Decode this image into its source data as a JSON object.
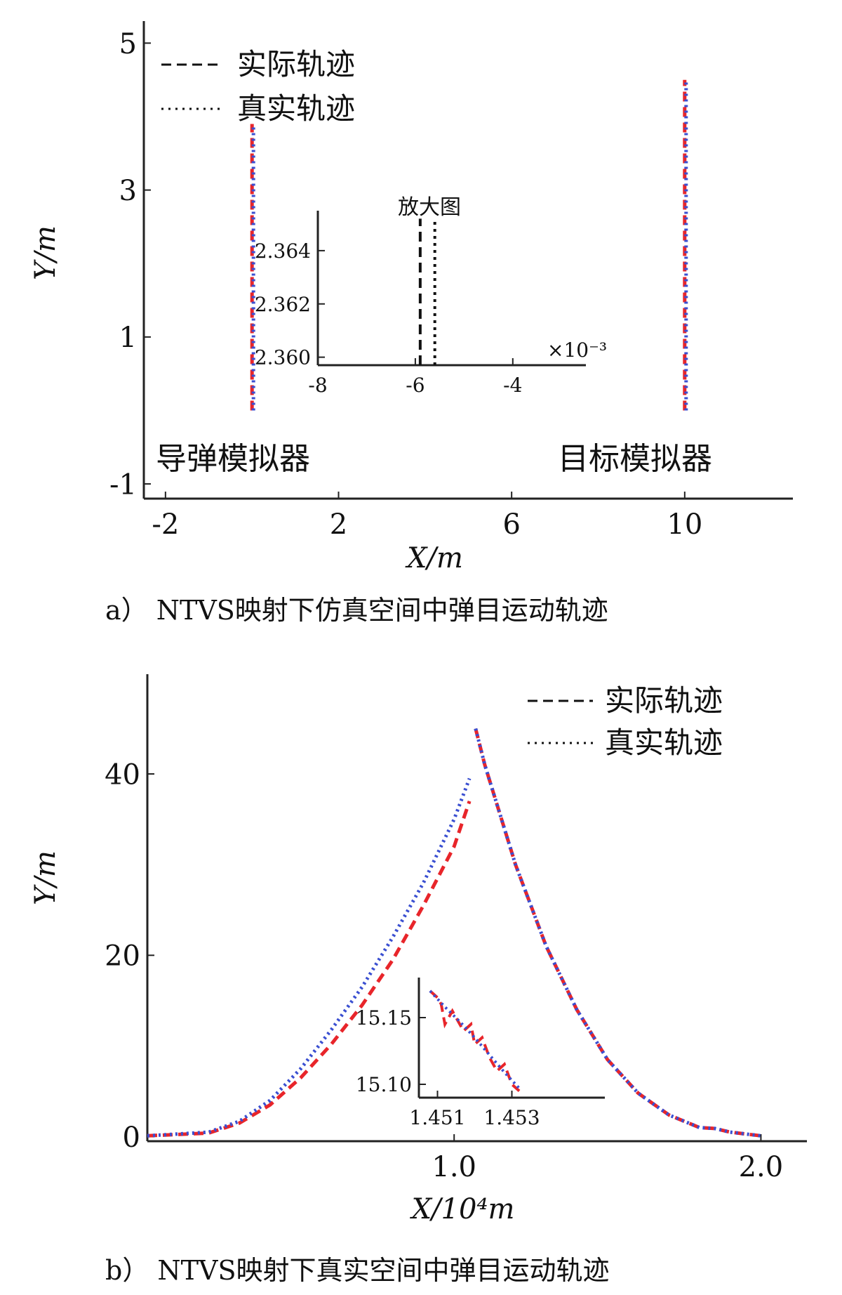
{
  "colors": {
    "actual": "#e8252a",
    "true": "#3a4fd1",
    "axis": "#222222"
  },
  "chart_data": [
    {
      "id": "a",
      "type": "line",
      "caption": "a） NTVS映射下仿真空间中弹目运动轨迹",
      "xlabel": "X/m",
      "ylabel": "Y/m",
      "xlim": [
        -2.5,
        12.5
      ],
      "ylim": [
        -1.2,
        5.3
      ],
      "xticks": [
        -2,
        2,
        6,
        10
      ],
      "yticks": [
        -1,
        1,
        3,
        5
      ],
      "legend": [
        "实际轨迹",
        "真实轨迹"
      ],
      "legend_position": "top-left",
      "series": [
        {
          "name": "实际轨迹",
          "style": "dashed",
          "segments": [
            [
              [
                0,
                0
              ],
              [
                0,
                3.9
              ]
            ],
            [
              [
                10,
                0
              ],
              [
                10,
                4.5
              ]
            ]
          ]
        },
        {
          "name": "真实轨迹",
          "style": "dotted",
          "segments": [
            [
              [
                0,
                0
              ],
              [
                0,
                3.9
              ]
            ],
            [
              [
                10,
                0
              ],
              [
                10,
                4.5
              ]
            ]
          ]
        }
      ],
      "annotations": [
        "导弹模拟器",
        "目标模拟器"
      ],
      "inset": {
        "title": "放大图",
        "xticks": [
          -8,
          -6,
          -4
        ],
        "xtick_labels": [
          "-8",
          "-6",
          "-4"
        ],
        "xlim": [
          -8,
          -2.5
        ],
        "yticks": [
          2.36,
          2.362,
          2.364
        ],
        "ytick_labels": [
          "2.360",
          "2.362",
          "2.364"
        ],
        "ylim": [
          2.3597,
          2.3655
        ],
        "x_multiplier": "×10⁻³",
        "series": [
          {
            "name": "实际轨迹",
            "style": "dashed",
            "x": -5.9,
            "y": [
              2.3597,
              2.3652
            ]
          },
          {
            "name": "真实轨迹",
            "style": "dotted",
            "x": -5.6,
            "y": [
              2.3597,
              2.3652
            ]
          }
        ]
      }
    },
    {
      "id": "b",
      "type": "line",
      "caption": "b） NTVS映射下真实空间中弹目运动轨迹",
      "xlabel": "X/10⁴m",
      "ylabel": "Y/m",
      "xlim": [
        0,
        2.15
      ],
      "ylim": [
        -0.5,
        51
      ],
      "xticks": [
        1.0,
        2.0
      ],
      "xtick_labels": [
        "1.0",
        "2.0"
      ],
      "yticks": [
        0,
        20,
        40
      ],
      "legend": [
        "实际轨迹",
        "真实轨迹"
      ],
      "legend_position": "top-right",
      "series": [
        {
          "name": "实际轨迹",
          "style": "dashed",
          "x": [
            0,
            0.2,
            0.3,
            0.4,
            0.5,
            0.6,
            0.7,
            0.8,
            0.9,
            1.0,
            1.05
          ],
          "y": [
            0.1,
            0.4,
            1.5,
            3.5,
            6.5,
            10.2,
            14.5,
            19.5,
            25.5,
            32.0,
            37.0
          ]
        },
        {
          "name": "真实轨迹",
          "style": "dotted",
          "x": [
            0,
            0.2,
            0.3,
            0.4,
            0.5,
            0.6,
            0.7,
            0.8,
            0.9,
            1.0,
            1.05
          ],
          "y": [
            0.1,
            0.5,
            1.7,
            4.0,
            7.5,
            11.8,
            16.5,
            22.0,
            28.0,
            35.0,
            39.5
          ]
        },
        {
          "name": "实际轨迹",
          "style": "dashed",
          "x": [
            1.07,
            1.1,
            1.2,
            1.3,
            1.4,
            1.5,
            1.6,
            1.7,
            1.8,
            1.85,
            1.9,
            2.0
          ],
          "y": [
            45.0,
            41.0,
            30.0,
            21.0,
            14.0,
            8.5,
            4.8,
            2.4,
            1.0,
            0.9,
            0.5,
            0.1
          ]
        },
        {
          "name": "真实轨迹",
          "style": "dotted",
          "x": [
            1.07,
            1.1,
            1.2,
            1.3,
            1.4,
            1.5,
            1.6,
            1.7,
            1.8,
            1.85,
            1.9,
            2.0
          ],
          "y": [
            45.0,
            41.0,
            30.0,
            21.0,
            14.0,
            8.5,
            4.8,
            2.4,
            1.0,
            0.9,
            0.5,
            0.1
          ]
        }
      ],
      "inset": {
        "xticks": [
          1.451,
          1.453
        ],
        "xtick_labels": [
          "1.451",
          "1.453"
        ],
        "xlim": [
          1.4505,
          1.4555
        ],
        "yticks": [
          15.1,
          15.15
        ],
        "ytick_labels": [
          "15.10",
          "15.15"
        ],
        "ylim": [
          15.09,
          15.18
        ],
        "series": [
          {
            "name": "实际轨迹",
            "style": "dashed",
            "x": [
              1.4508,
              1.451,
              1.4511,
              1.4512,
              1.4514,
              1.4515,
              1.4517,
              1.4519,
              1.452,
              1.4522,
              1.4524,
              1.4526,
              1.4528,
              1.453,
              1.4532
            ],
            "y": [
              15.17,
              15.165,
              15.16,
              15.145,
              15.155,
              15.15,
              15.14,
              15.145,
              15.13,
              15.135,
              15.12,
              15.11,
              15.115,
              15.1,
              15.095
            ]
          },
          {
            "name": "真实轨迹",
            "style": "dotted",
            "x": [
              1.4508,
              1.4512,
              1.4516,
              1.452,
              1.4524,
              1.4528,
              1.4532
            ],
            "y": [
              15.17,
              15.158,
              15.147,
              15.135,
              15.122,
              15.109,
              15.097
            ]
          }
        ]
      }
    }
  ]
}
